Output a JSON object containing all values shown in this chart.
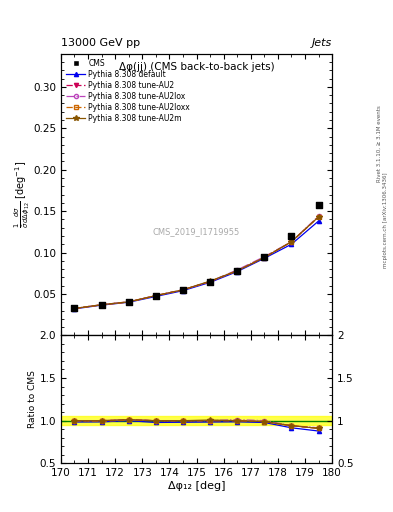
{
  "title_top": "13000 GeV pp",
  "title_right": "Jets",
  "plot_title": "Δφ(jj) (CMS back-to-back jets)",
  "xlabel": "Δφ₁₂ [deg]",
  "ylabel_main": "$\\frac{1}{\\bar{\\sigma}}\\frac{d\\sigma}{d\\Delta\\phi_{12}}$ [deg$^{-1}$]",
  "ylabel_ratio": "Ratio to CMS",
  "right_label_top": "Rivet 3.1.10, ≥ 3.1M events",
  "right_label_bot": "mcplots.cern.ch [arXiv:1306.3436]",
  "watermark": "CMS_2019_I1719955",
  "xlim": [
    170,
    180
  ],
  "ylim_main": [
    0.0,
    0.34
  ],
  "ylim_ratio": [
    0.5,
    2.0
  ],
  "x_data": [
    170.5,
    171.5,
    172.5,
    173.5,
    174.5,
    175.5,
    176.5,
    177.5,
    178.5,
    179.5
  ],
  "cms_data": [
    0.0325,
    0.037,
    0.04,
    0.048,
    0.055,
    0.065,
    0.078,
    0.095,
    0.12,
    0.157
  ],
  "pythia_default": [
    0.032,
    0.0365,
    0.04,
    0.047,
    0.054,
    0.064,
    0.077,
    0.093,
    0.11,
    0.138
  ],
  "pythia_AU2": [
    0.0325,
    0.037,
    0.0405,
    0.048,
    0.055,
    0.065,
    0.078,
    0.094,
    0.113,
    0.143
  ],
  "pythia_AU2lox": [
    0.0325,
    0.037,
    0.0405,
    0.048,
    0.055,
    0.065,
    0.079,
    0.095,
    0.113,
    0.144
  ],
  "pythia_AU2loxx": [
    0.0325,
    0.0368,
    0.0402,
    0.048,
    0.055,
    0.065,
    0.078,
    0.094,
    0.113,
    0.143
  ],
  "pythia_AU2m": [
    0.0325,
    0.037,
    0.0405,
    0.048,
    0.055,
    0.0655,
    0.078,
    0.094,
    0.113,
    0.143
  ],
  "color_default": "#0000ee",
  "color_AU2": "#cc0055",
  "color_AU2lox": "#cc0055",
  "color_AU2loxx": "#cc6600",
  "color_AU2m": "#885500",
  "yticks_main": [
    0.05,
    0.1,
    0.15,
    0.2,
    0.25,
    0.3
  ],
  "yticks_ratio": [
    0.5,
    1.0,
    1.5,
    2.0
  ],
  "xticks": [
    170,
    171,
    172,
    173,
    174,
    175,
    176,
    177,
    178,
    179,
    180
  ]
}
